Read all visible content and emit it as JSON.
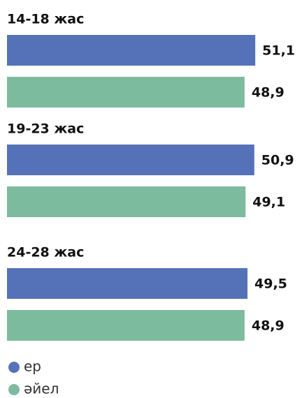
{
  "chart_data": {
    "type": "hbar",
    "categories": [
      "14-18 жас",
      "19-23 жас",
      "24-28 жас"
    ],
    "series": [
      {
        "name": "ер",
        "color": "#5572b8",
        "values": [
          51.1,
          50.9,
          49.5
        ],
        "value_labels": [
          "51,1",
          "50,9",
          "49,5"
        ]
      },
      {
        "name": "әйел",
        "color": "#7dbb9f",
        "values": [
          48.9,
          49.1,
          48.9
        ],
        "value_labels": [
          "48,9",
          "49,1",
          "48,9"
        ]
      }
    ],
    "xlim": [
      0,
      60
    ]
  }
}
